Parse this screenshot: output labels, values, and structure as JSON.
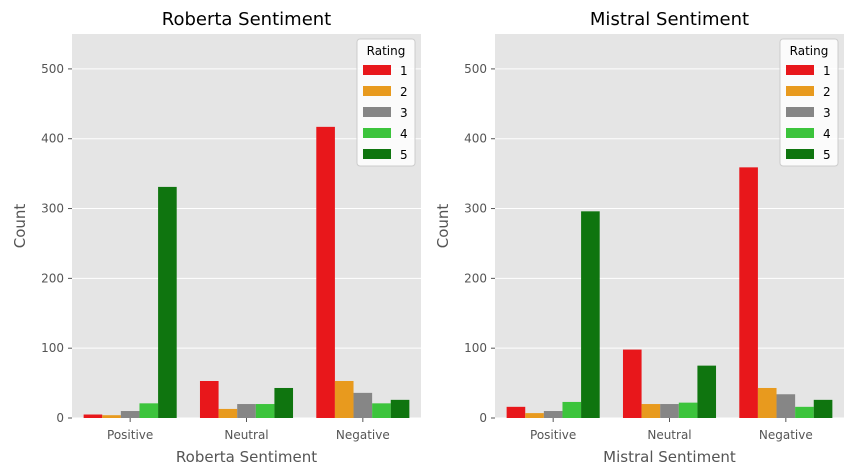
{
  "chart_data": [
    {
      "type": "bar",
      "title": "Roberta Sentiment",
      "xlabel": "Roberta Sentiment",
      "ylabel": "Count",
      "categories": [
        "Positive",
        "Neutral",
        "Negative"
      ],
      "ylim": [
        0,
        550
      ],
      "yticks": [
        "0",
        "100",
        "200",
        "300",
        "400",
        "500"
      ],
      "grid": true,
      "legend": {
        "title": "Rating",
        "placement": "top-right"
      },
      "series": [
        {
          "name": "1",
          "color": "#e8171b",
          "values": [
            5,
            53,
            417
          ]
        },
        {
          "name": "2",
          "color": "#e89a1e",
          "values": [
            4,
            13,
            53
          ]
        },
        {
          "name": "3",
          "color": "#868686",
          "values": [
            10,
            20,
            36
          ]
        },
        {
          "name": "4",
          "color": "#3cc43c",
          "values": [
            21,
            20,
            21
          ]
        },
        {
          "name": "5",
          "color": "#0f750f",
          "values": [
            331,
            43,
            26
          ]
        }
      ]
    },
    {
      "type": "bar",
      "title": "Mistral Sentiment",
      "xlabel": "Mistral Sentiment",
      "ylabel": "Count",
      "categories": [
        "Positive",
        "Neutral",
        "Negative"
      ],
      "ylim": [
        0,
        550
      ],
      "yticks": [
        "0",
        "100",
        "200",
        "300",
        "400",
        "500"
      ],
      "grid": true,
      "legend": {
        "title": "Rating",
        "placement": "top-right"
      },
      "series": [
        {
          "name": "1",
          "color": "#e8171b",
          "values": [
            16,
            98,
            359
          ]
        },
        {
          "name": "2",
          "color": "#e89a1e",
          "values": [
            7,
            20,
            43
          ]
        },
        {
          "name": "3",
          "color": "#868686",
          "values": [
            10,
            20,
            34
          ]
        },
        {
          "name": "4",
          "color": "#3cc43c",
          "values": [
            23,
            22,
            16
          ]
        },
        {
          "name": "5",
          "color": "#0f750f",
          "values": [
            296,
            75,
            26
          ]
        }
      ]
    }
  ]
}
